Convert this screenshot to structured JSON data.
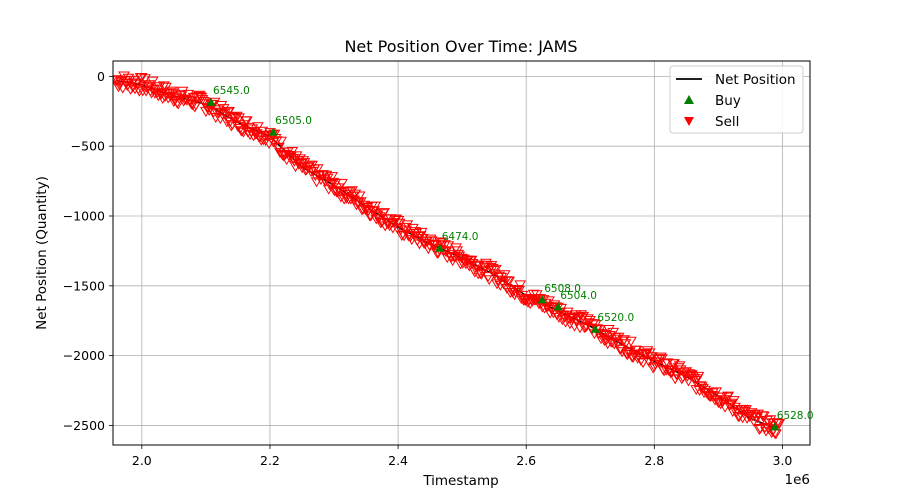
{
  "chart_data": {
    "type": "scatter",
    "title": "Net Position Over Time: JAMS",
    "xlabel": "Timestamp",
    "ylabel": "Net Position (Quantity)",
    "x_offset_label": "1e6",
    "xlim": [
      1.955,
      3.043
    ],
    "ylim": [
      -2640,
      110
    ],
    "x_ticks": [
      2.0,
      2.2,
      2.4,
      2.6,
      2.8,
      3.0
    ],
    "x_tick_labels": [
      "2.0",
      "2.2",
      "2.4",
      "2.6",
      "2.8",
      "3.0"
    ],
    "y_ticks": [
      0,
      -500,
      -1000,
      -1500,
      -2000,
      -2500
    ],
    "y_tick_labels": [
      "0",
      "−500",
      "−1000",
      "−1500",
      "−2000",
      "−2500"
    ],
    "grid": true,
    "legend_position": "top-right",
    "legend": [
      {
        "label": "Net Position",
        "marker": "line",
        "color": "#000000"
      },
      {
        "label": "Buy",
        "marker": "triangle-up",
        "color": "#008000"
      },
      {
        "label": "Sell",
        "marker": "triangle-down",
        "color": "#ff0000"
      }
    ],
    "net_position_path": [
      {
        "x": 1.96,
        "y": -30
      },
      {
        "x": 2.0,
        "y": -60
      },
      {
        "x": 2.05,
        "y": -140
      },
      {
        "x": 2.1,
        "y": -200
      },
      {
        "x": 2.15,
        "y": -330
      },
      {
        "x": 2.2,
        "y": -430
      },
      {
        "x": 2.25,
        "y": -650
      },
      {
        "x": 2.3,
        "y": -780
      },
      {
        "x": 2.35,
        "y": -930
      },
      {
        "x": 2.4,
        "y": -1080
      },
      {
        "x": 2.45,
        "y": -1200
      },
      {
        "x": 2.5,
        "y": -1300
      },
      {
        "x": 2.55,
        "y": -1420
      },
      {
        "x": 2.6,
        "y": -1570
      },
      {
        "x": 2.65,
        "y": -1680
      },
      {
        "x": 2.7,
        "y": -1790
      },
      {
        "x": 2.75,
        "y": -1920
      },
      {
        "x": 2.8,
        "y": -2040
      },
      {
        "x": 2.85,
        "y": -2150
      },
      {
        "x": 2.9,
        "y": -2290
      },
      {
        "x": 2.95,
        "y": -2450
      },
      {
        "x": 2.99,
        "y": -2520
      }
    ],
    "buy_points": [
      {
        "x": 2.108,
        "y": -185,
        "label": "6545.0"
      },
      {
        "x": 2.205,
        "y": -400,
        "label": "6505.0"
      },
      {
        "x": 2.465,
        "y": -1230,
        "label": "6474.0"
      },
      {
        "x": 2.625,
        "y": -1600,
        "label": "6508.0"
      },
      {
        "x": 2.65,
        "y": -1650,
        "label": "6504.0"
      },
      {
        "x": 2.708,
        "y": -1810,
        "label": "6520.0"
      },
      {
        "x": 2.988,
        "y": -2510,
        "label": "6528.0"
      }
    ],
    "sell_band": {
      "x_start": 1.96,
      "x_end": 2.995,
      "count": 600,
      "spread": 55,
      "color": "#ff0000"
    }
  }
}
